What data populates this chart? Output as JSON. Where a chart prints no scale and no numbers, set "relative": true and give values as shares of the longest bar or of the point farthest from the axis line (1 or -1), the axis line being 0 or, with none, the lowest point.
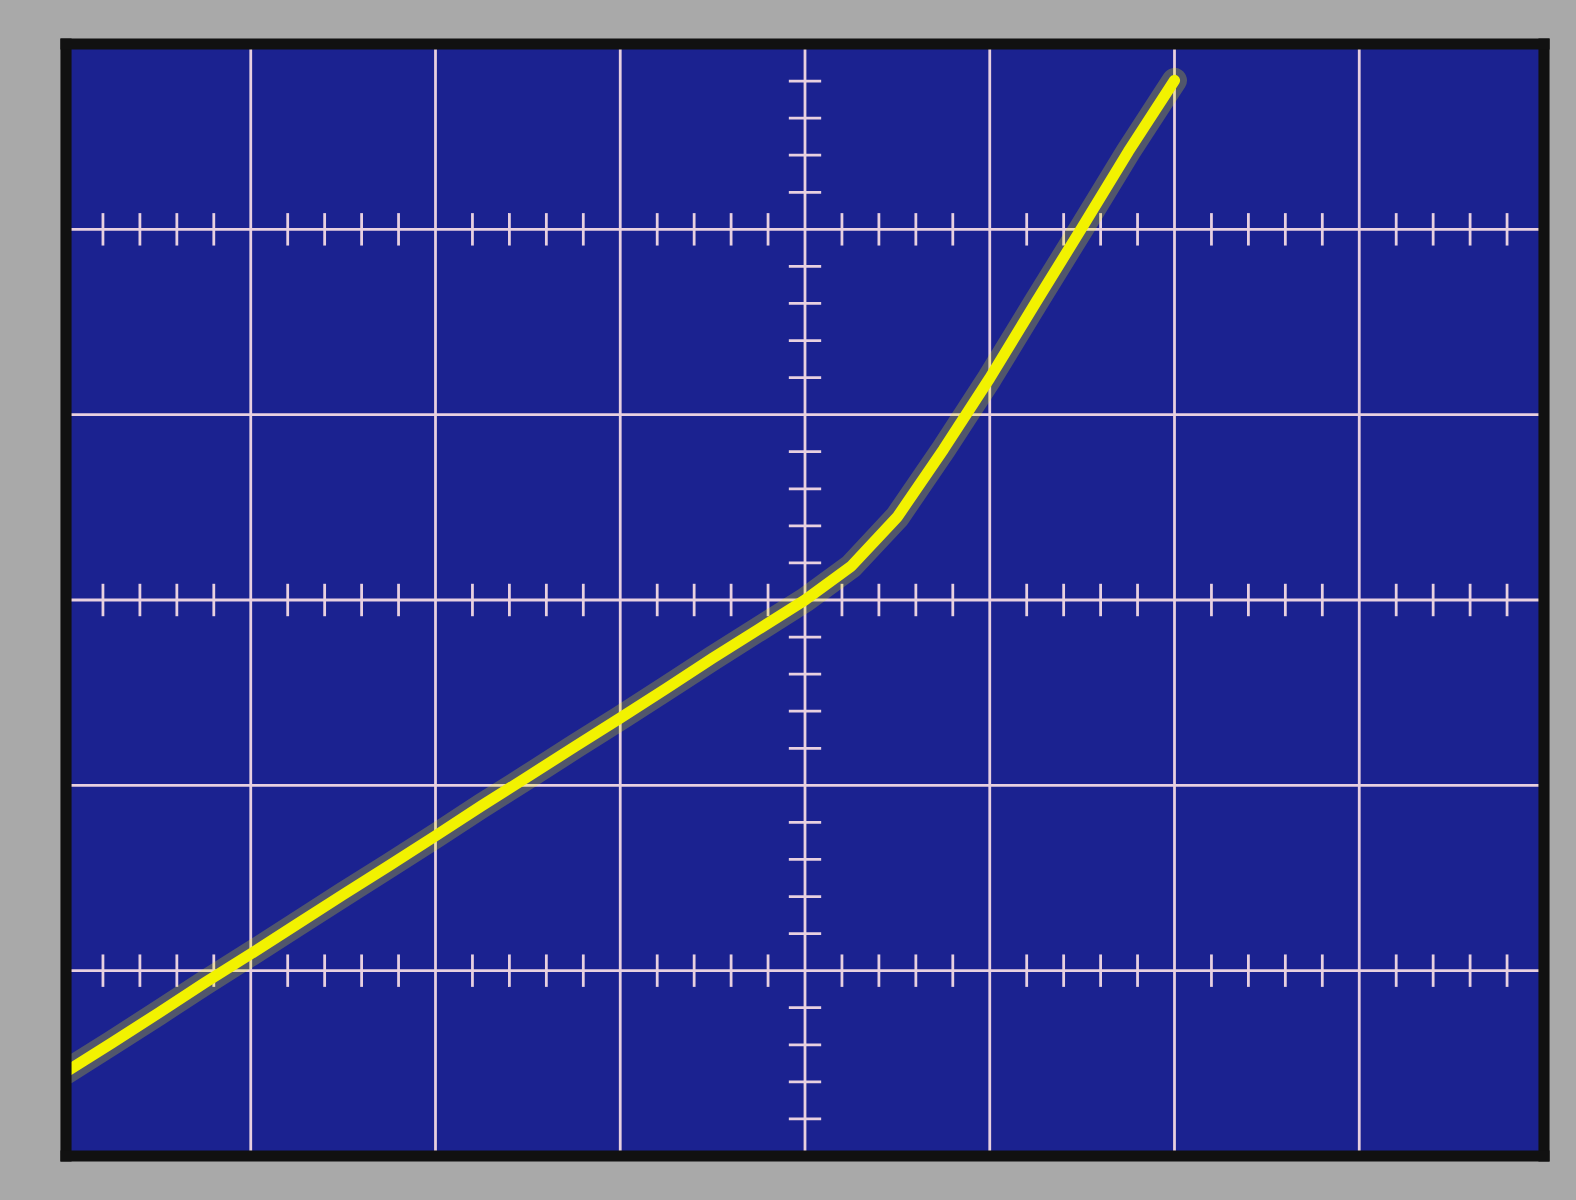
{
  "chart_data": {
    "type": "line",
    "relative": true,
    "grid": true,
    "tick_labels": false,
    "categories": [
      null,
      null,
      null,
      null,
      null,
      null,
      null,
      null,
      null,
      null,
      null,
      null,
      null,
      null,
      null,
      null,
      null,
      null,
      null,
      null,
      null,
      null,
      null,
      null,
      null,
      null,
      null,
      null,
      null,
      null,
      null,
      null,
      null
    ],
    "series": [
      {
        "color": "#f2f200",
        "values": [
          -0.908,
          -0.852,
          -0.795,
          -0.737,
          -0.681,
          -0.624,
          -0.567,
          -0.511,
          -0.454,
          -0.396,
          -0.34,
          -0.283,
          -0.227,
          -0.17,
          -0.112,
          -0.056,
          0,
          0.065,
          0.16,
          0.29,
          0.427,
          0.573,
          0.717,
          0.863,
          1,
          null,
          null,
          null,
          null,
          null,
          null,
          null,
          null
        ]
      }
    ]
  }
}
